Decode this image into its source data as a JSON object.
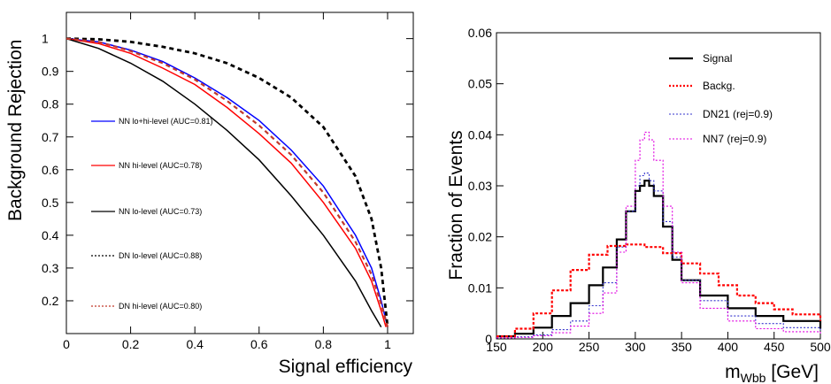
{
  "chart_data": [
    {
      "type": "line",
      "title": "",
      "xlabel": "Signal efficiency",
      "ylabel": "Background Rejection",
      "xlim": [
        0,
        1.08
      ],
      "ylim": [
        0.1,
        1.08
      ],
      "x_ticks": [
        0,
        0.2,
        0.4,
        0.6,
        0.8,
        1
      ],
      "y_ticks": [
        0.2,
        0.3,
        0.4,
        0.5,
        0.6,
        0.7,
        0.8,
        0.9,
        1
      ],
      "grid": false,
      "legend_position": "left",
      "series": [
        {
          "name": "NN lo+hi-level  (AUC=0.81)",
          "color": "#0000ff",
          "style": "solid",
          "x": [
            0,
            0.1,
            0.2,
            0.3,
            0.4,
            0.5,
            0.6,
            0.7,
            0.8,
            0.9,
            0.95,
            0.98,
            1.0
          ],
          "y": [
            1.0,
            0.99,
            0.965,
            0.93,
            0.88,
            0.82,
            0.75,
            0.66,
            0.55,
            0.4,
            0.3,
            0.2,
            0.12
          ]
        },
        {
          "name": "NN hi-level   (AUC=0.78)",
          "color": "#ff0000",
          "style": "solid",
          "x": [
            0,
            0.1,
            0.2,
            0.3,
            0.4,
            0.5,
            0.6,
            0.7,
            0.8,
            0.9,
            0.95,
            0.98,
            0.995
          ],
          "y": [
            1.0,
            0.985,
            0.955,
            0.91,
            0.86,
            0.79,
            0.71,
            0.62,
            0.5,
            0.36,
            0.26,
            0.17,
            0.12
          ]
        },
        {
          "name": "NN lo-level   (AUC=0.73)",
          "color": "#000000",
          "style": "solid",
          "x": [
            0,
            0.1,
            0.2,
            0.3,
            0.4,
            0.5,
            0.6,
            0.7,
            0.8,
            0.9,
            0.95,
            0.98
          ],
          "y": [
            1.0,
            0.97,
            0.925,
            0.87,
            0.8,
            0.72,
            0.63,
            0.52,
            0.4,
            0.26,
            0.17,
            0.12
          ]
        },
        {
          "name": "DN lo-level   (AUC=0.88)",
          "color": "#000000",
          "style": "dashed",
          "x": [
            0,
            0.1,
            0.2,
            0.3,
            0.4,
            0.5,
            0.6,
            0.7,
            0.8,
            0.9,
            0.95,
            0.98,
            1.0
          ],
          "y": [
            1.0,
            0.998,
            0.99,
            0.975,
            0.955,
            0.925,
            0.88,
            0.82,
            0.73,
            0.58,
            0.45,
            0.3,
            0.12
          ]
        },
        {
          "name": "DN hi-level   (AUC=0.80)",
          "color": "#c0392b",
          "style": "dashed",
          "x": [
            0,
            0.1,
            0.2,
            0.3,
            0.4,
            0.5,
            0.6,
            0.7,
            0.8,
            0.9,
            0.95,
            0.98,
            1.0
          ],
          "y": [
            1.0,
            0.99,
            0.962,
            0.925,
            0.875,
            0.81,
            0.735,
            0.645,
            0.53,
            0.38,
            0.28,
            0.19,
            0.12
          ]
        }
      ]
    },
    {
      "type": "line",
      "title": "",
      "xlabel": "m_Wbb [GeV]",
      "ylabel": "Fraction of Events",
      "xlim": [
        150,
        500
      ],
      "ylim": [
        0,
        0.06
      ],
      "x_ticks": [
        150,
        200,
        250,
        300,
        350,
        400,
        450,
        500
      ],
      "y_ticks": [
        0,
        0.01,
        0.02,
        0.03,
        0.04,
        0.05,
        0.06
      ],
      "grid": false,
      "legend_position": "top-right",
      "series": [
        {
          "name": "Signal",
          "color": "#000000",
          "style": "solid",
          "x": [
            150,
            170,
            190,
            210,
            230,
            250,
            265,
            280,
            290,
            300,
            305,
            310,
            315,
            320,
            330,
            340,
            350,
            370,
            400,
            430,
            460,
            500
          ],
          "y": [
            0.0005,
            0.001,
            0.0022,
            0.0045,
            0.007,
            0.0105,
            0.014,
            0.0195,
            0.025,
            0.029,
            0.03,
            0.031,
            0.03,
            0.028,
            0.022,
            0.0155,
            0.0115,
            0.0085,
            0.006,
            0.0045,
            0.0035,
            0.002
          ]
        },
        {
          "name": "Backg.",
          "color": "#ff0000",
          "style": "dotted",
          "x": [
            150,
            170,
            190,
            210,
            230,
            250,
            270,
            290,
            310,
            330,
            350,
            370,
            390,
            410,
            430,
            450,
            470,
            500
          ],
          "y": [
            0.0005,
            0.002,
            0.005,
            0.0095,
            0.0135,
            0.0165,
            0.0182,
            0.0185,
            0.018,
            0.0168,
            0.0148,
            0.0128,
            0.0105,
            0.0085,
            0.007,
            0.0058,
            0.0048,
            0.0035
          ]
        },
        {
          "name": "DN21 (rej=0.9)",
          "color": "#3333cc",
          "style": "dotted",
          "x": [
            150,
            170,
            190,
            210,
            230,
            250,
            265,
            280,
            290,
            300,
            305,
            310,
            315,
            320,
            330,
            340,
            350,
            370,
            400,
            430,
            460,
            500
          ],
          "y": [
            0.0002,
            0.0004,
            0.0008,
            0.0018,
            0.0035,
            0.0065,
            0.011,
            0.018,
            0.025,
            0.03,
            0.032,
            0.0325,
            0.031,
            0.029,
            0.023,
            0.016,
            0.0115,
            0.0075,
            0.0045,
            0.003,
            0.0022,
            0.0015
          ]
        },
        {
          "name": "NN7 (rej=0.9)",
          "color": "#e000e0",
          "style": "dotted",
          "x": [
            150,
            170,
            190,
            210,
            230,
            250,
            265,
            280,
            290,
            300,
            305,
            310,
            315,
            320,
            330,
            340,
            350,
            370,
            400,
            430,
            460,
            500
          ],
          "y": [
            0.0002,
            0.0003,
            0.0006,
            0.0012,
            0.0025,
            0.005,
            0.009,
            0.017,
            0.026,
            0.035,
            0.039,
            0.0405,
            0.039,
            0.035,
            0.026,
            0.017,
            0.011,
            0.006,
            0.0035,
            0.002,
            0.0014,
            0.001
          ]
        }
      ]
    }
  ]
}
